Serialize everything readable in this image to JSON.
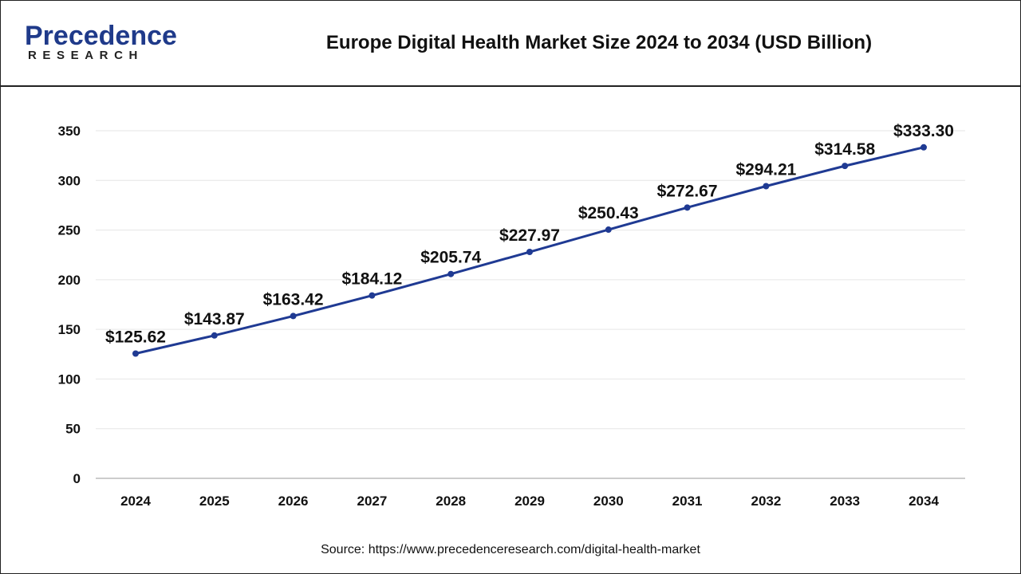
{
  "header": {
    "logo_main": "Precedence",
    "logo_sub": "RESEARCH",
    "title": "Europe Digital Health Market Size 2024 to 2034 (USD Billion)"
  },
  "footer": {
    "source": "Source: https://www.precedenceresearch.com/digital-health-market"
  },
  "chart_data": {
    "type": "line",
    "title": "Europe Digital Health Market Size 2024 to 2034 (USD Billion)",
    "xlabel": "",
    "ylabel": "",
    "x": [
      "2024",
      "2025",
      "2026",
      "2027",
      "2028",
      "2029",
      "2030",
      "2031",
      "2032",
      "2033",
      "2034"
    ],
    "series": [
      {
        "values": [
          125.62,
          143.87,
          163.42,
          184.12,
          205.74,
          227.97,
          250.43,
          272.67,
          294.21,
          314.58,
          333.3
        ],
        "labels": [
          "$125.62",
          "$143.87",
          "$163.42",
          "$184.12",
          "$205.74",
          "$227.97",
          "$250.43",
          "$272.67",
          "$294.21",
          "$314.58",
          "$333.30"
        ],
        "color": "#1f3a93"
      }
    ],
    "yticks": [
      "0",
      "50",
      "100",
      "150",
      "200",
      "250",
      "300",
      "350"
    ],
    "ylim": [
      0,
      350
    ],
    "grid": true,
    "legend": "none"
  }
}
